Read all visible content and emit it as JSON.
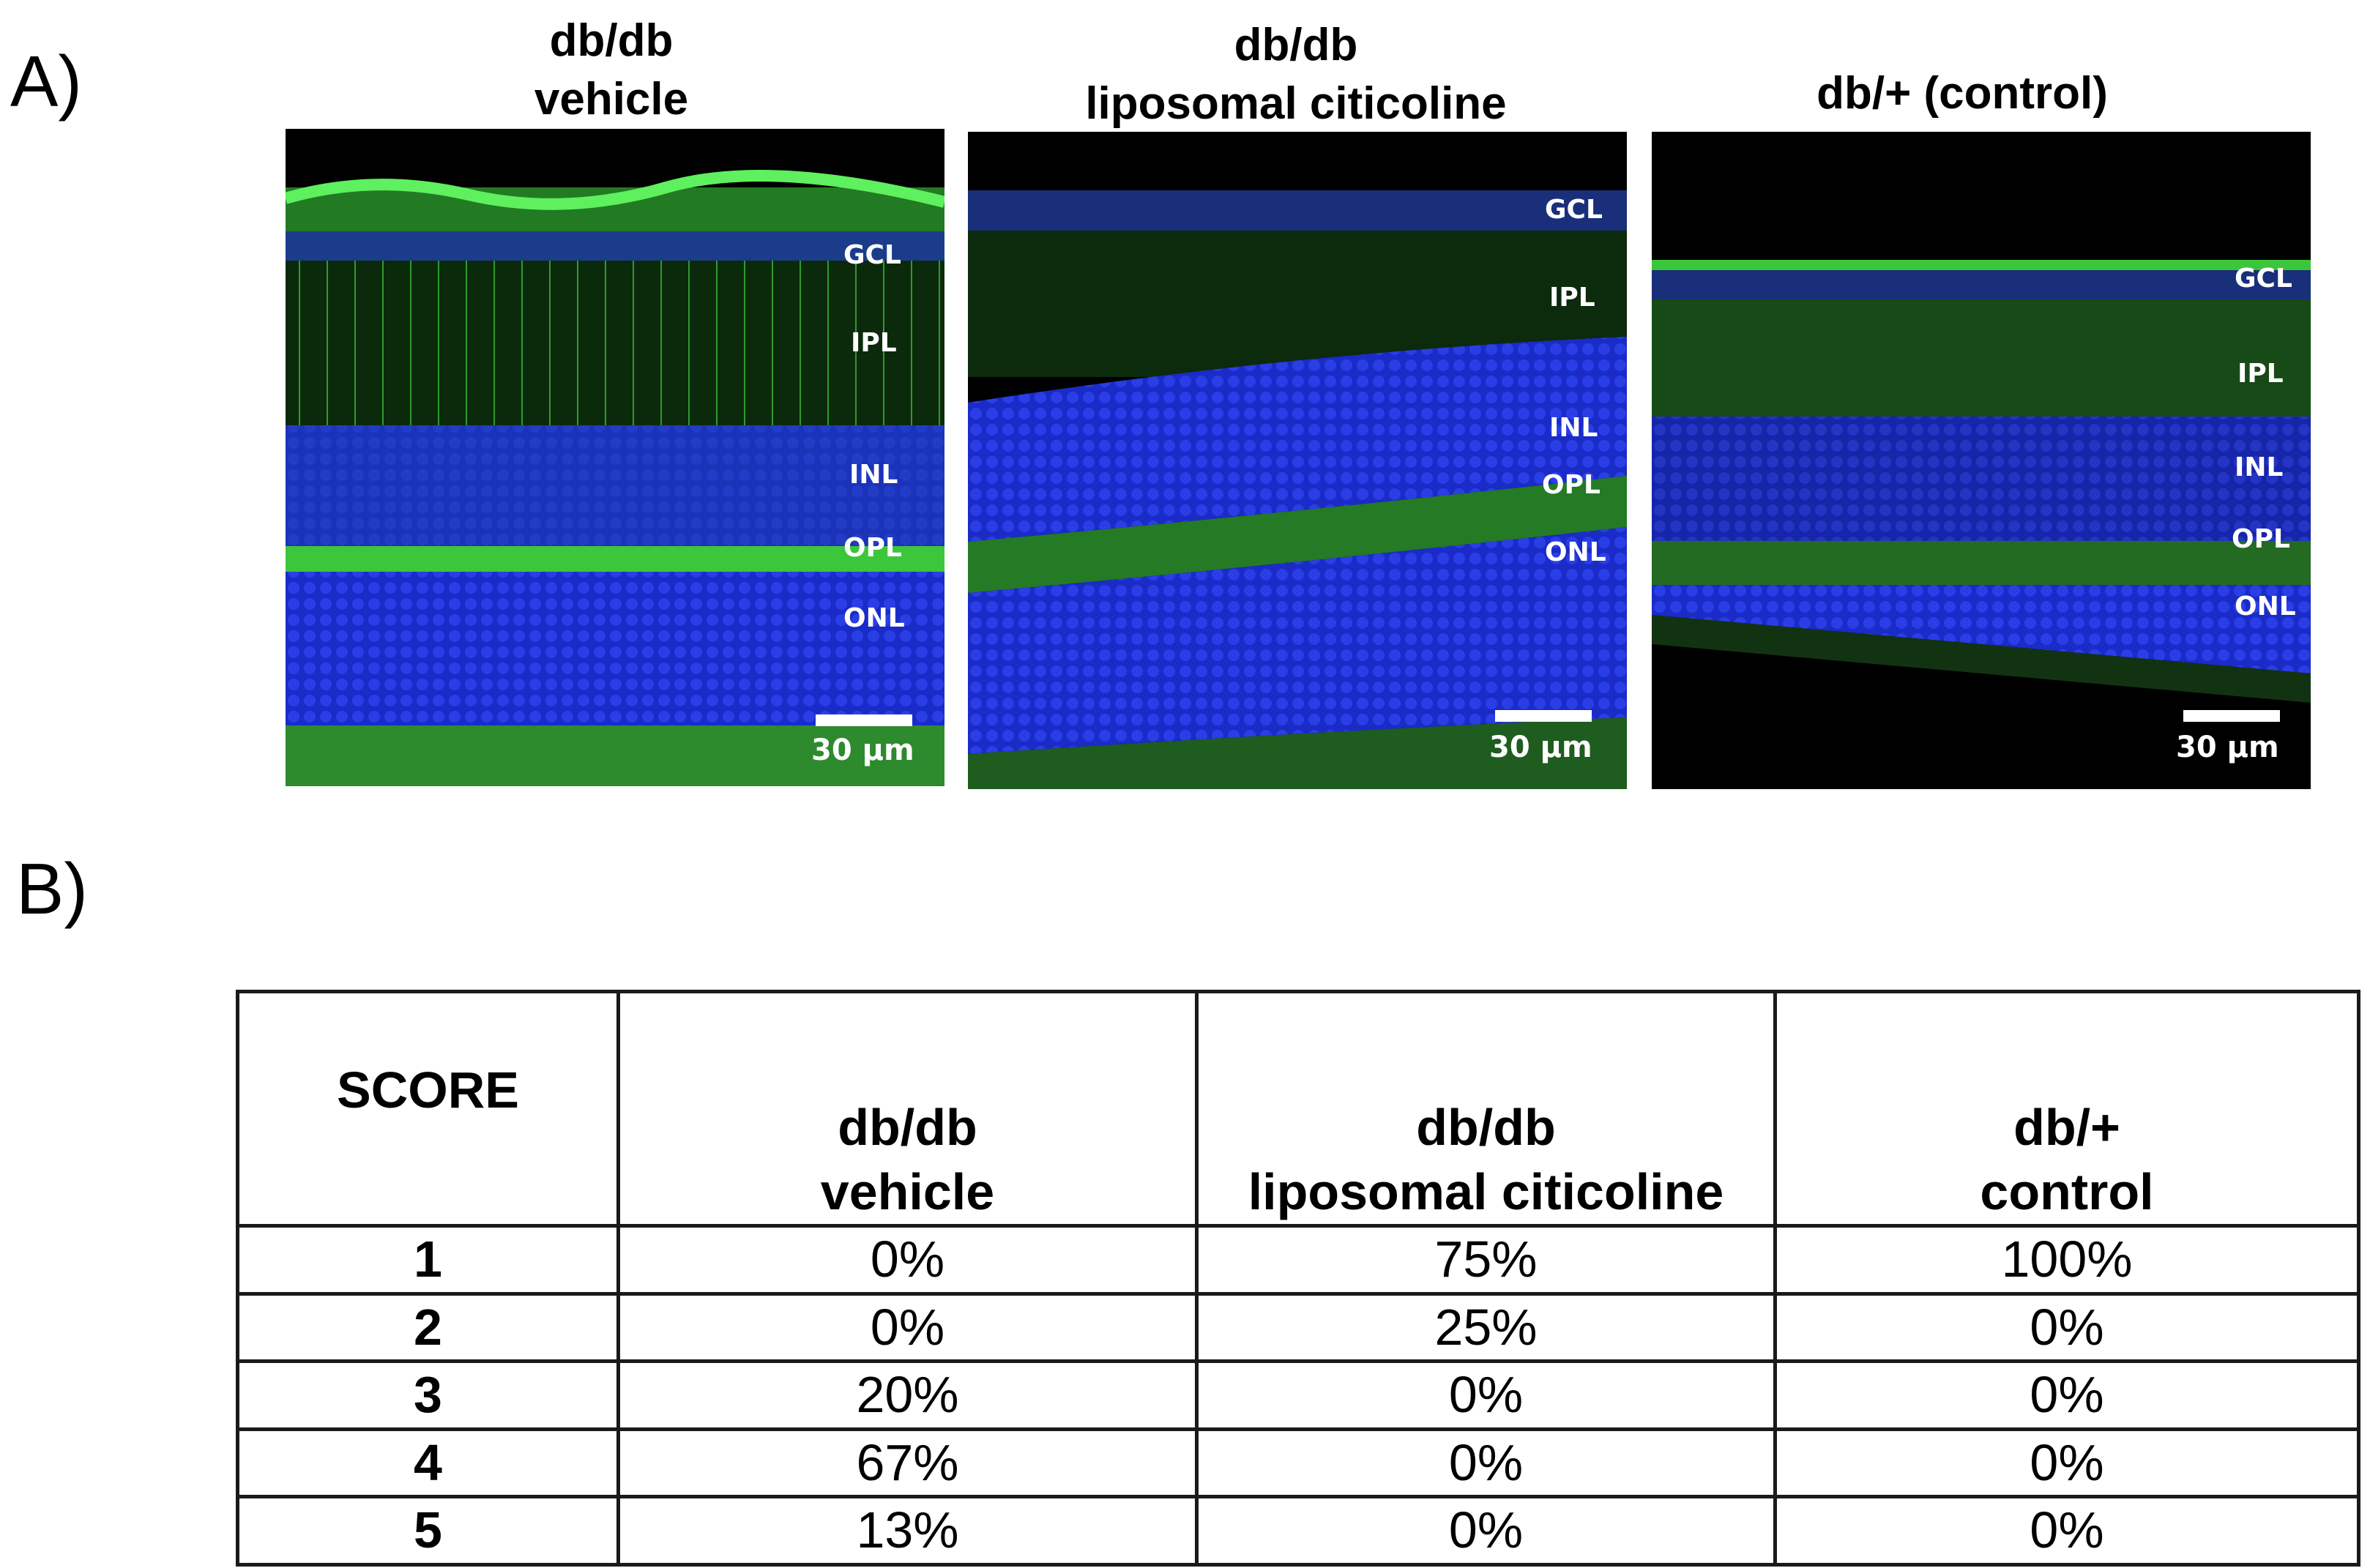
{
  "panel_a": {
    "label": "A)",
    "images": [
      {
        "title_line1": "db/db",
        "title_line2": "vehicle",
        "layers": [
          "GCL",
          "IPL",
          "INL",
          "OPL",
          "ONL"
        ],
        "scale_bar": "30 µm"
      },
      {
        "title_line1": "db/db",
        "title_line2": "liposomal citicoline",
        "layers": [
          "GCL",
          "IPL",
          "INL",
          "OPL",
          "ONL"
        ],
        "scale_bar": "30 µm"
      },
      {
        "title_line1": "db/+ (control)",
        "title_line2": "",
        "layers": [
          "GCL",
          "IPL",
          "INL",
          "OPL",
          "ONL"
        ],
        "scale_bar": "30 µm"
      }
    ]
  },
  "panel_b": {
    "label": "B)",
    "table": {
      "header": {
        "score": "SCORE",
        "col1_line1": "db/db",
        "col1_line2": "vehicle",
        "col2_line1": "db/db",
        "col2_line2": "liposomal citicoline",
        "col3_line1": "db/+",
        "col3_line2": "control"
      },
      "rows": [
        {
          "score": "1",
          "vehicle": "0%",
          "citicoline": "75%",
          "control": "100%"
        },
        {
          "score": "2",
          "vehicle": "0%",
          "citicoline": "25%",
          "control": "0%"
        },
        {
          "score": "3",
          "vehicle": "20%",
          "citicoline": "0%",
          "control": "0%"
        },
        {
          "score": "4",
          "vehicle": "67%",
          "citicoline": "0%",
          "control": "0%"
        },
        {
          "score": "5",
          "vehicle": "13%",
          "citicoline": "0%",
          "control": "0%"
        }
      ]
    }
  },
  "colors": {
    "nuclei_blue": "#1f2fd6",
    "glia_green": "#3cc63c",
    "background_black": "#000000"
  }
}
